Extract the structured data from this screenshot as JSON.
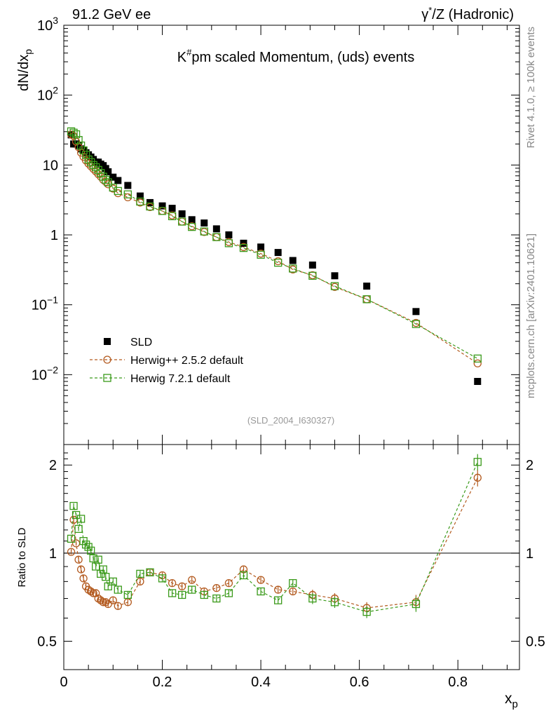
{
  "header": {
    "left": "91.2 GeV ee",
    "right_prefix": "γ",
    "right_sup": "*",
    "right_suffix": "/Z (Hadronic)"
  },
  "side_labels": {
    "rivet": "Rivet 4.1.0, ≥ 100k events",
    "mcplots": "mcplots.cern.ch [arXiv:2401.10621]"
  },
  "chart_data": {
    "type": "scatter",
    "title_prefix": "K",
    "title_sup": "#",
    "title_suffix": "pm scaled Momentum, (uds) events",
    "analysis_tag": "(SLD_2004_I630327)",
    "xlabel": "x",
    "xlabel_sub": "p",
    "ylabel": "dN/dx",
    "ylabel_sub": "p",
    "ratio_ylabel": "Ratio to SLD",
    "xlim": [
      0,
      0.925
    ],
    "ylim": [
      0.001,
      1000
    ],
    "yscale": "log",
    "ratio_ylim": [
      0.4,
      2.35
    ],
    "ratio_yscale": "log",
    "x_ticks": [
      0,
      0.2,
      0.4,
      0.6,
      0.8
    ],
    "x_tick_labels": [
      "0",
      "0.2",
      "0.4",
      "0.6",
      "0.8"
    ],
    "y_ticks": [
      {
        "value": 1000,
        "base": "10",
        "exp": "3",
        "plain": ""
      },
      {
        "value": 100,
        "base": "10",
        "exp": "2",
        "plain": ""
      },
      {
        "value": 10,
        "base": "",
        "exp": "",
        "plain": "10"
      },
      {
        "value": 1,
        "base": "",
        "exp": "",
        "plain": "1"
      },
      {
        "value": 0.1,
        "base": "10",
        "exp": "−1",
        "plain": ""
      },
      {
        "value": 0.01,
        "base": "10",
        "exp": "−2",
        "plain": ""
      }
    ],
    "ratio_y_ticks": [
      0.5,
      1,
      2
    ],
    "ratio_y_tick_labels": [
      "0.5",
      "1",
      "2"
    ],
    "x": [
      0.015,
      0.02,
      0.025,
      0.03,
      0.035,
      0.04,
      0.045,
      0.05,
      0.055,
      0.06,
      0.065,
      0.07,
      0.075,
      0.08,
      0.085,
      0.09,
      0.1,
      0.11,
      0.13,
      0.155,
      0.175,
      0.2,
      0.22,
      0.24,
      0.26,
      0.285,
      0.31,
      0.335,
      0.365,
      0.4,
      0.435,
      0.465,
      0.505,
      0.55,
      0.615,
      0.715,
      0.84
    ],
    "series": [
      {
        "name": "SLD",
        "style": "data",
        "color": "#000000",
        "values": [
          27,
          20,
          20,
          19,
          17,
          16,
          15,
          14,
          13,
          12,
          11,
          11,
          10.3,
          9.8,
          8.9,
          8.0,
          6.7,
          6.0,
          5.1,
          3.6,
          2.9,
          2.6,
          2.4,
          2.0,
          1.65,
          1.48,
          1.22,
          1.0,
          0.76,
          0.67,
          0.56,
          0.43,
          0.37,
          0.26,
          0.185,
          0.08,
          0.008
        ]
      },
      {
        "name": "Herwig++ 2.5.2 default",
        "style": "circle",
        "color": "#b35a1f",
        "values": [
          27.3,
          26.0,
          21.6,
          18.0,
          15.0,
          13.1,
          11.6,
          10.5,
          9.6,
          8.8,
          8.1,
          7.4,
          6.8,
          6.15,
          5.75,
          5.3,
          4.6,
          3.95,
          3.45,
          2.9,
          2.5,
          2.2,
          1.9,
          1.55,
          1.33,
          1.1,
          0.93,
          0.79,
          0.67,
          0.54,
          0.42,
          0.32,
          0.265,
          0.18,
          0.12,
          0.055,
          0.0145
        ],
        "ratio": [
          1.01,
          1.3,
          1.08,
          0.95,
          0.88,
          0.82,
          0.77,
          0.75,
          0.74,
          0.73,
          0.73,
          0.7,
          0.69,
          0.68,
          0.68,
          0.67,
          0.69,
          0.66,
          0.68,
          0.8,
          0.86,
          0.84,
          0.79,
          0.77,
          0.81,
          0.74,
          0.76,
          0.79,
          0.88,
          0.81,
          0.75,
          0.74,
          0.72,
          0.7,
          0.65,
          0.68,
          1.81
        ],
        "ratio_err": [
          0.02,
          0.03,
          0.02,
          0.02,
          0.02,
          0.02,
          0.02,
          0.02,
          0.02,
          0.02,
          0.02,
          0.02,
          0.02,
          0.02,
          0.02,
          0.02,
          0.02,
          0.02,
          0.02,
          0.02,
          0.02,
          0.02,
          0.02,
          0.02,
          0.02,
          0.02,
          0.02,
          0.02,
          0.02,
          0.02,
          0.02,
          0.02,
          0.03,
          0.03,
          0.03,
          0.04,
          0.12
        ]
      },
      {
        "name": "Herwig 7.2.1 default",
        "style": "square",
        "color": "#3a9a1a",
        "values": [
          30.3,
          29.0,
          27.5,
          22.8,
          19.0,
          16.2,
          14.0,
          12.0,
          11.0,
          10.0,
          9.3,
          8.5,
          7.7,
          6.8,
          6.15,
          5.65,
          4.75,
          4.25,
          3.8,
          3.0,
          2.55,
          2.2,
          1.85,
          1.55,
          1.3,
          1.12,
          0.93,
          0.76,
          0.65,
          0.52,
          0.4,
          0.33,
          0.26,
          0.185,
          0.12,
          0.053,
          0.017
        ],
        "ratio": [
          1.12,
          1.45,
          1.35,
          1.21,
          1.31,
          1.1,
          1.07,
          1.05,
          1.02,
          0.96,
          0.9,
          0.95,
          0.85,
          0.88,
          0.83,
          0.77,
          0.8,
          0.75,
          0.72,
          0.85,
          0.86,
          0.82,
          0.73,
          0.72,
          0.75,
          0.72,
          0.7,
          0.73,
          0.84,
          0.74,
          0.69,
          0.79,
          0.7,
          0.68,
          0.63,
          0.67,
          2.05
        ],
        "ratio_err": [
          0.02,
          0.03,
          0.02,
          0.02,
          0.02,
          0.02,
          0.02,
          0.02,
          0.02,
          0.02,
          0.02,
          0.02,
          0.02,
          0.02,
          0.02,
          0.02,
          0.02,
          0.02,
          0.02,
          0.02,
          0.02,
          0.02,
          0.02,
          0.02,
          0.02,
          0.02,
          0.02,
          0.02,
          0.02,
          0.02,
          0.02,
          0.02,
          0.03,
          0.03,
          0.03,
          0.04,
          0.13
        ]
      }
    ]
  }
}
